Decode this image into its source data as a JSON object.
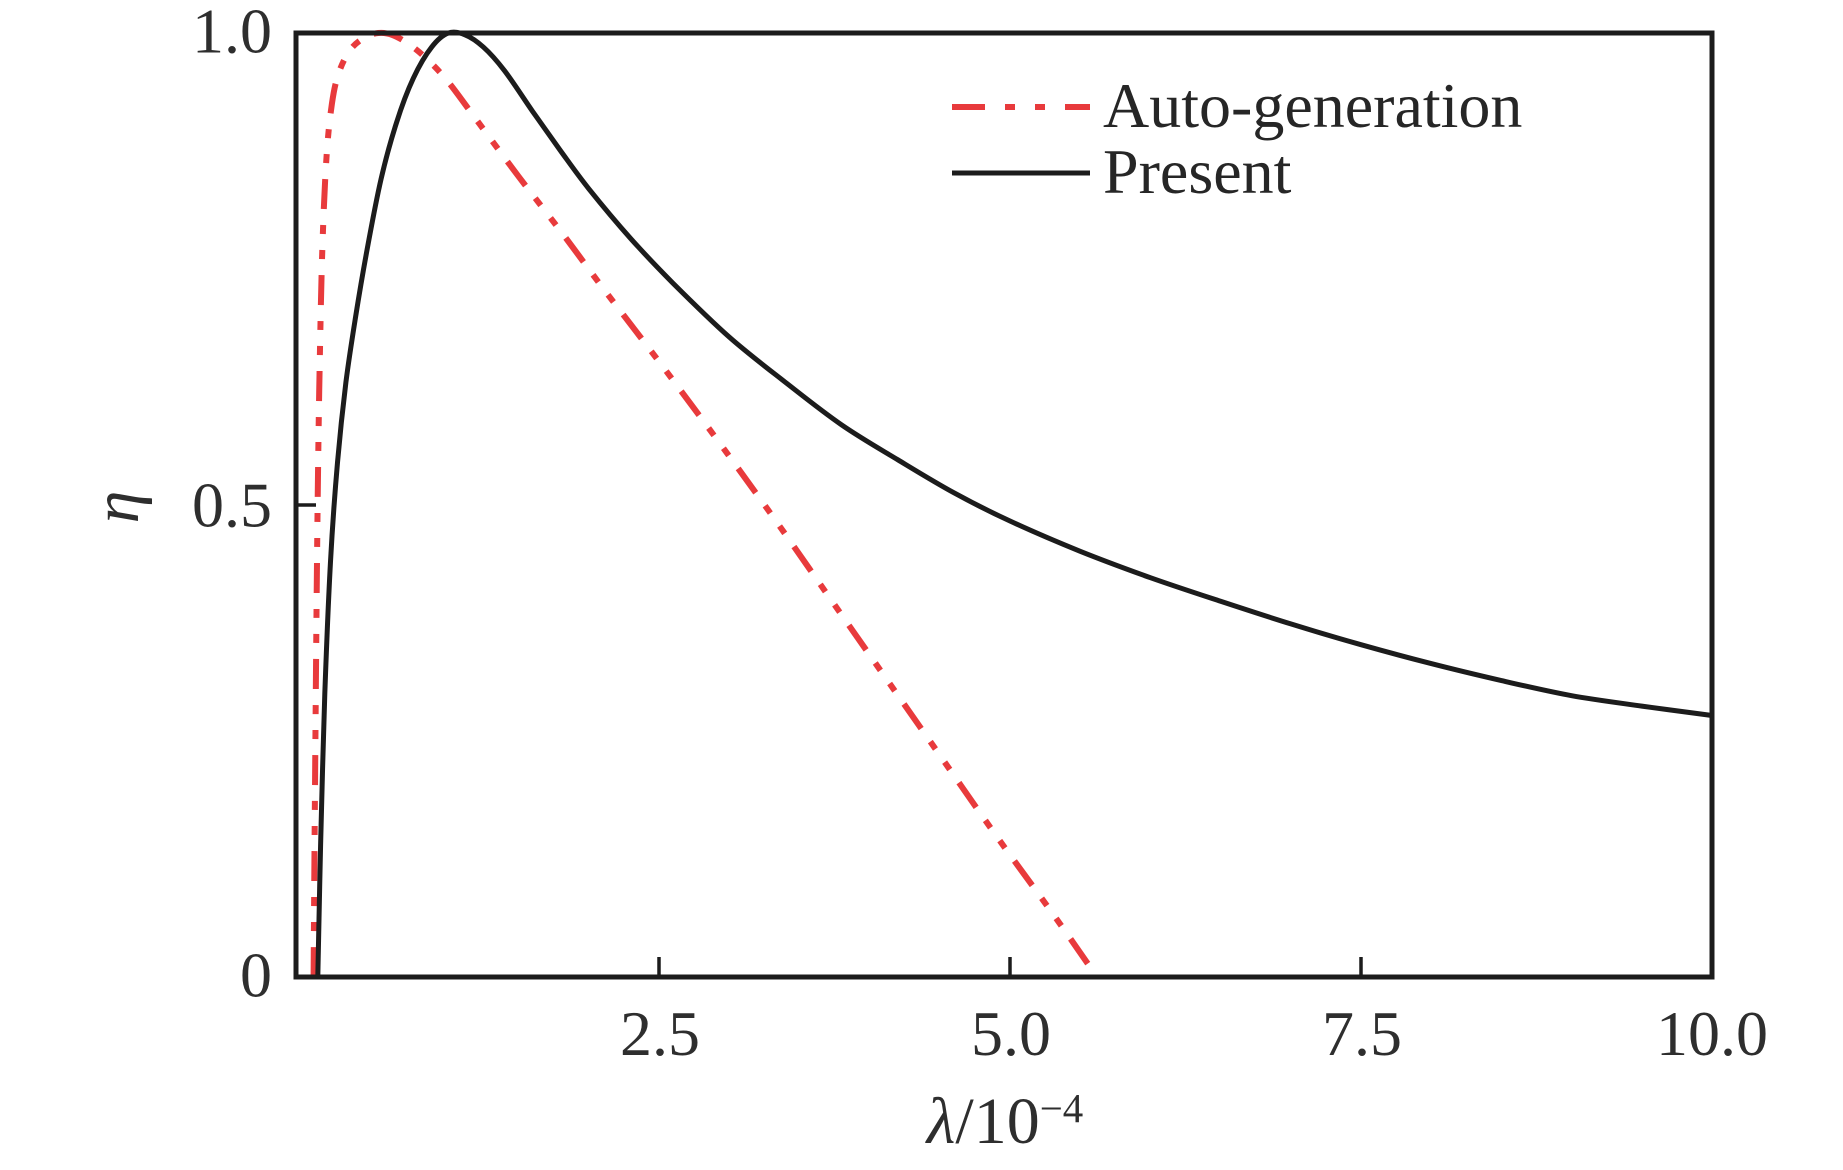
{
  "figure": {
    "background": "#ffffff",
    "frame_color": "#1c1c1c",
    "text_color": "#2e2e2e"
  },
  "chart_data": {
    "type": "line",
    "title": "",
    "xlabel": "λ/10⁻⁴",
    "xlabel_parts": {
      "lambda": "λ",
      "rest": "/10",
      "sup": "−4"
    },
    "ylabel": "η",
    "xlim": [
      0,
      10
    ],
    "ylim": [
      0,
      1.0
    ],
    "x_ticks": [
      2.5,
      5.0,
      7.5,
      10.0
    ],
    "x_tick_labels": [
      "2.5",
      "5.0",
      "7.5",
      "10.0"
    ],
    "y_ticks": [
      0,
      0.5,
      1.0
    ],
    "y_tick_labels": [
      "0",
      "0.5",
      "1.0"
    ],
    "grid": false,
    "legend": {
      "position": "inside-top-right",
      "items": [
        "Auto-generation",
        "Present"
      ]
    },
    "series": [
      {
        "name": "Auto-generation",
        "color": "#e83a3c",
        "line_style": "dash-dot-dot",
        "line_width": 6,
        "points": [
          [
            0.04,
            0.0
          ],
          [
            0.05,
            0.2
          ],
          [
            0.065,
            0.45
          ],
          [
            0.08,
            0.62
          ],
          [
            0.1,
            0.76
          ],
          [
            0.13,
            0.865
          ],
          [
            0.17,
            0.925
          ],
          [
            0.22,
            0.958
          ],
          [
            0.3,
            0.982
          ],
          [
            0.4,
            0.995
          ],
          [
            0.5,
            1.0
          ],
          [
            0.6,
            0.998
          ],
          [
            0.72,
            0.988
          ],
          [
            0.85,
            0.972
          ],
          [
            1.0,
            0.948
          ],
          [
            1.2,
            0.908
          ],
          [
            1.5,
            0.848
          ],
          [
            1.8,
            0.79
          ],
          [
            2.1,
            0.73
          ],
          [
            2.5,
            0.652
          ],
          [
            2.9,
            0.572
          ],
          [
            3.3,
            0.49
          ],
          [
            3.7,
            0.405
          ],
          [
            4.1,
            0.32
          ],
          [
            4.5,
            0.235
          ],
          [
            4.9,
            0.15
          ],
          [
            5.3,
            0.068
          ],
          [
            5.62,
            0.0
          ]
        ]
      },
      {
        "name": "Present",
        "color": "#1c1c1c",
        "line_style": "solid",
        "line_width": 5,
        "points": [
          [
            0.07,
            0.0
          ],
          [
            0.09,
            0.14
          ],
          [
            0.12,
            0.3
          ],
          [
            0.16,
            0.44
          ],
          [
            0.21,
            0.545
          ],
          [
            0.27,
            0.63
          ],
          [
            0.34,
            0.7
          ],
          [
            0.42,
            0.77
          ],
          [
            0.52,
            0.845
          ],
          [
            0.63,
            0.905
          ],
          [
            0.75,
            0.952
          ],
          [
            0.88,
            0.985
          ],
          [
            1.0,
            1.0
          ],
          [
            1.12,
            0.998
          ],
          [
            1.25,
            0.985
          ],
          [
            1.4,
            0.96
          ],
          [
            1.6,
            0.917
          ],
          [
            1.8,
            0.875
          ],
          [
            2.0,
            0.835
          ],
          [
            2.3,
            0.782
          ],
          [
            2.6,
            0.735
          ],
          [
            3.0,
            0.678
          ],
          [
            3.4,
            0.63
          ],
          [
            3.8,
            0.585
          ],
          [
            4.2,
            0.548
          ],
          [
            4.6,
            0.513
          ],
          [
            5.0,
            0.483
          ],
          [
            5.5,
            0.451
          ],
          [
            6.0,
            0.423
          ],
          [
            6.5,
            0.398
          ],
          [
            7.0,
            0.374
          ],
          [
            7.5,
            0.352
          ],
          [
            8.0,
            0.332
          ],
          [
            8.5,
            0.314
          ],
          [
            9.0,
            0.298
          ],
          [
            9.5,
            0.287
          ],
          [
            10.0,
            0.277
          ]
        ]
      }
    ]
  }
}
